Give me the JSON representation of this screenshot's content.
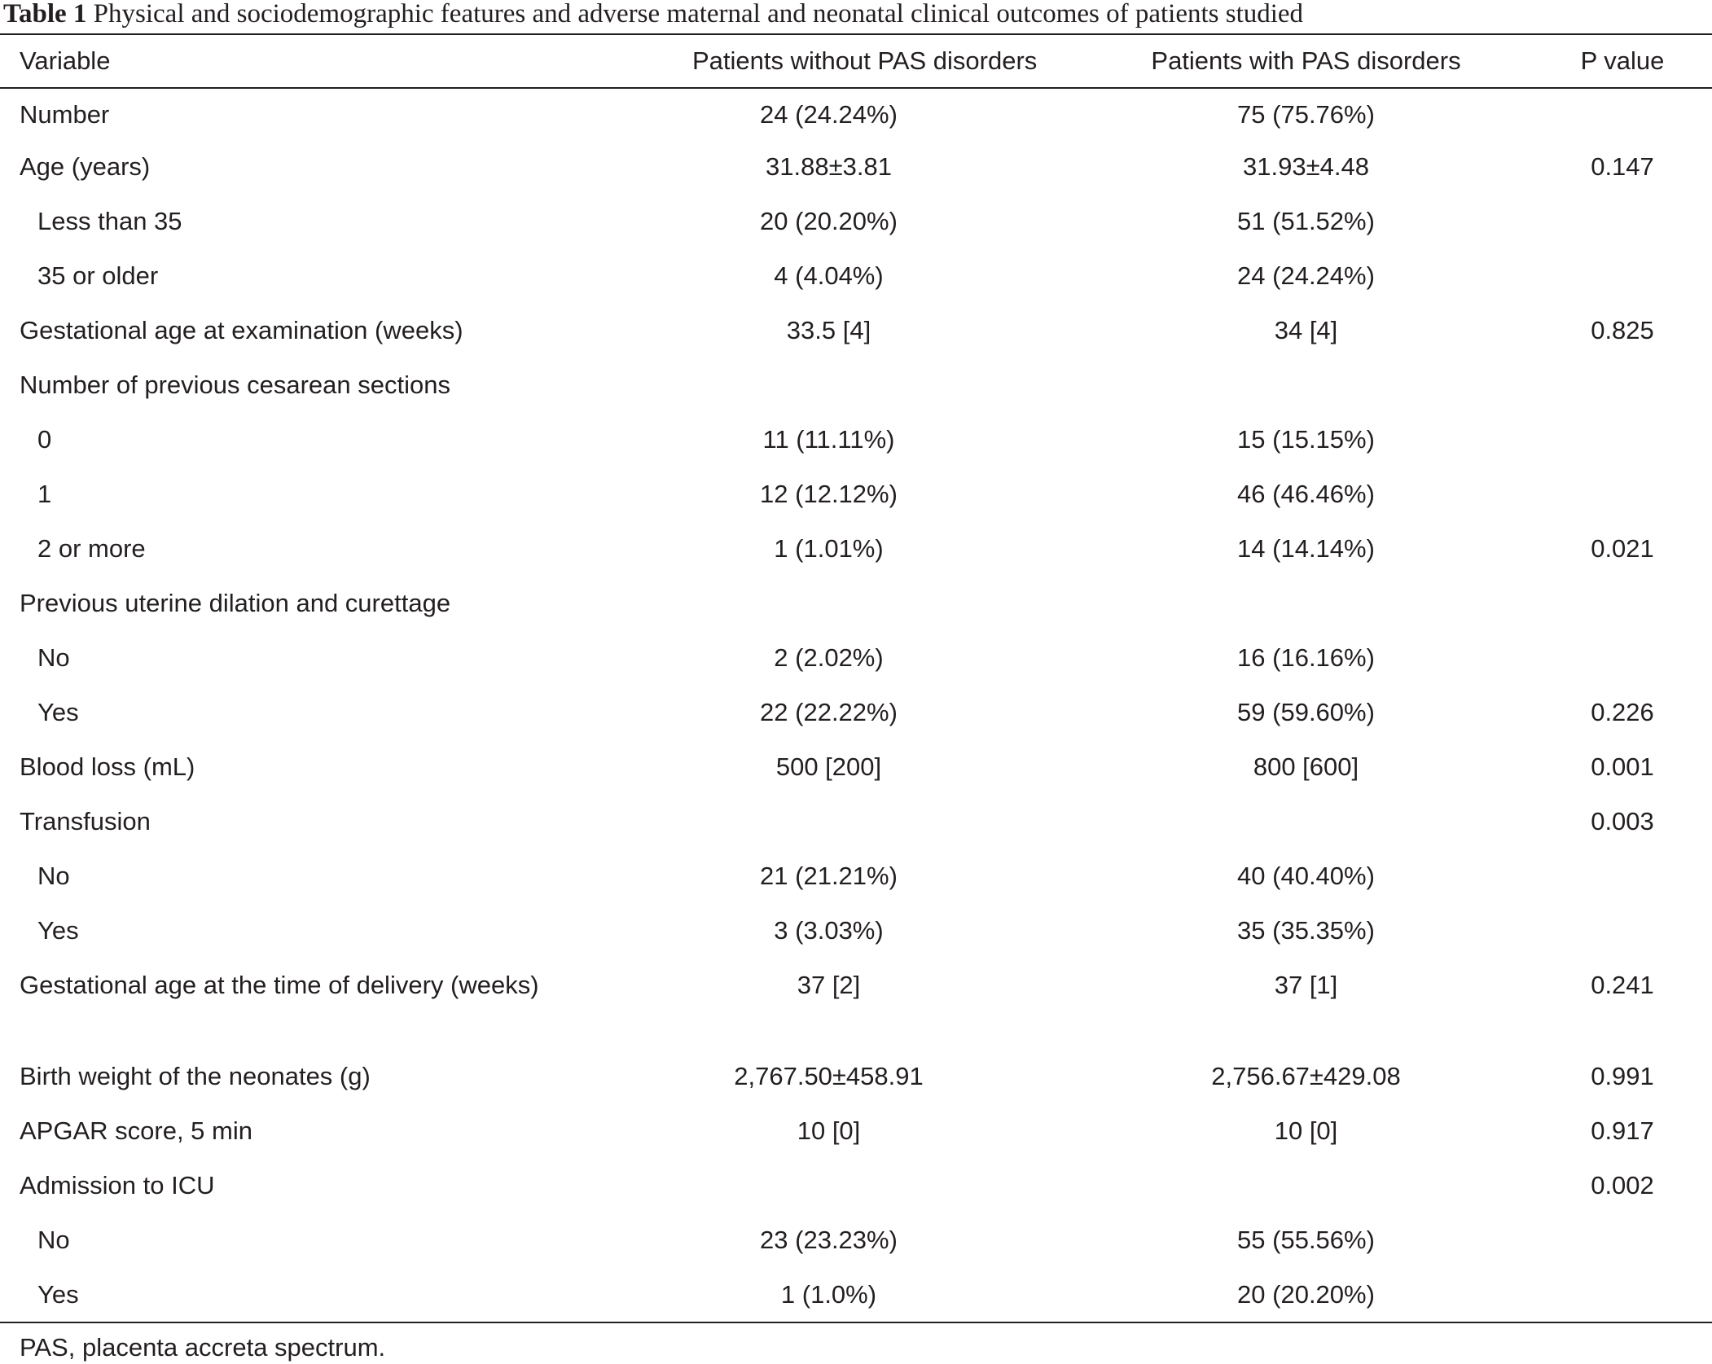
{
  "caption": {
    "label": "Table 1",
    "text": "Physical and sociodemographic features and adverse maternal and neonatal clinical outcomes of patients studied"
  },
  "headers": {
    "variable": "Variable",
    "without": "Patients without PAS disorders",
    "with": "Patients with PAS disorders",
    "p": "P value"
  },
  "rows": [
    {
      "variable": "Number",
      "without": "24 (24.24%)",
      "with": "75 (75.76%)",
      "p": ""
    },
    {
      "variable": "Age (years)",
      "without": "31.88±3.81",
      "with": "31.93±4.48",
      "p": "0.147"
    },
    {
      "variable": "Less than 35",
      "without": "20 (20.20%)",
      "with": "51 (51.52%)",
      "p": ""
    },
    {
      "variable": "35 or older",
      "without": "4 (4.04%)",
      "with": "24 (24.24%)",
      "p": ""
    },
    {
      "variable": "Gestational age at examination (weeks)",
      "without": "33.5 [4]",
      "with": "34 [4]",
      "p": "0.825"
    },
    {
      "variable": "Number of previous cesarean sections",
      "without": "",
      "with": "",
      "p": ""
    },
    {
      "variable": "0",
      "without": "11 (11.11%)",
      "with": "15 (15.15%)",
      "p": ""
    },
    {
      "variable": "1",
      "without": "12 (12.12%)",
      "with": "46 (46.46%)",
      "p": ""
    },
    {
      "variable": "2 or more",
      "without": "1 (1.01%)",
      "with": "14 (14.14%)",
      "p": "0.021"
    },
    {
      "variable": "Previous uterine dilation and curettage",
      "without": "",
      "with": "",
      "p": ""
    },
    {
      "variable": "No",
      "without": "2 (2.02%)",
      "with": "16 (16.16%)",
      "p": ""
    },
    {
      "variable": "Yes",
      "without": "22 (22.22%)",
      "with": "59 (59.60%)",
      "p": "0.226"
    },
    {
      "variable": "Blood loss (mL)",
      "without": "500 [200]",
      "with": "800 [600]",
      "p": "0.001"
    },
    {
      "variable": "Transfusion",
      "without": "",
      "with": "",
      "p": "0.003"
    },
    {
      "variable": "No",
      "without": "21 (21.21%)",
      "with": "40 (40.40%)",
      "p": ""
    },
    {
      "variable": "Yes",
      "without": "3 (3.03%)",
      "with": "35 (35.35%)",
      "p": ""
    },
    {
      "variable": "Gestational age at the time of delivery (weeks)",
      "without": "37 [2]",
      "with": "37 [1]",
      "p": "0.241"
    },
    {
      "variable": "Birth weight of the neonates (g)",
      "without": "2,767.50±458.91",
      "with": "2,756.67±429.08",
      "p": "0.991"
    },
    {
      "variable": "APGAR score, 5 min",
      "without": "10 [0]",
      "with": "10 [0]",
      "p": "0.917"
    },
    {
      "variable": "Admission to ICU",
      "without": "",
      "with": "",
      "p": "0.002"
    },
    {
      "variable": "No",
      "without": "23 (23.23%)",
      "with": "55 (55.56%)",
      "p": ""
    },
    {
      "variable": "Yes",
      "without": "1 (1.0%)",
      "with": "20 (20.20%)",
      "p": ""
    }
  ],
  "footnote": "PAS, placenta accreta spectrum."
}
